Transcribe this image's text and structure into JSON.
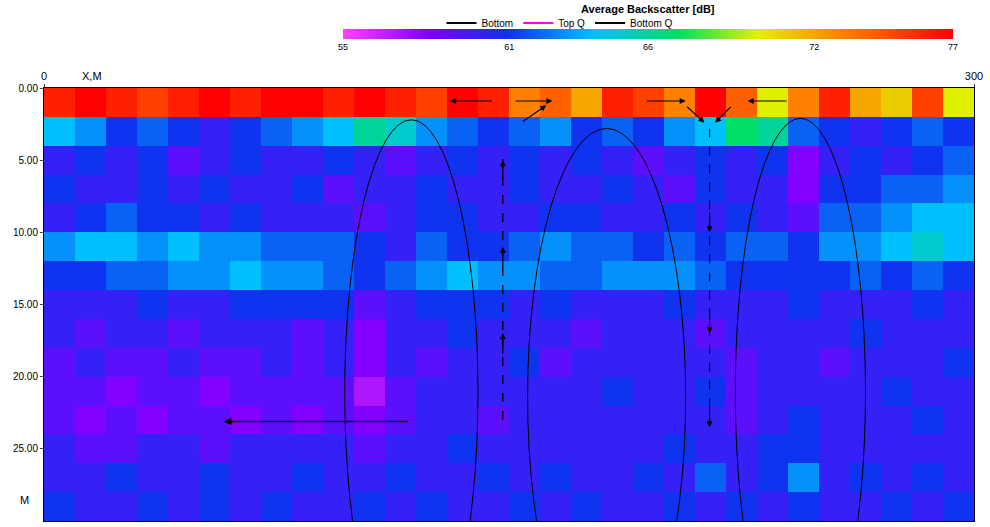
{
  "chart_data": {
    "type": "heatmap",
    "title": "Average Backscatter [dB]",
    "x_label": "X,M",
    "y_label": "M",
    "x": [
      5,
      15,
      25,
      35,
      45,
      55,
      65,
      75,
      85,
      95,
      105,
      115,
      125,
      135,
      145,
      155,
      165,
      175,
      185,
      195,
      205,
      215,
      225,
      235,
      245,
      255,
      265,
      275,
      285,
      295
    ],
    "y": [
      1,
      3,
      5,
      7,
      9,
      11,
      13,
      15,
      17,
      19,
      21,
      23,
      25,
      27,
      29
    ],
    "z": [
      [
        76,
        77,
        76,
        75,
        76,
        77,
        76,
        77,
        77,
        76,
        77,
        76,
        75,
        77,
        76,
        73,
        74,
        72,
        76,
        75,
        73,
        77,
        74,
        70,
        73,
        76,
        72,
        71,
        75,
        70
      ],
      [
        64,
        63,
        61,
        62,
        61,
        60,
        61,
        62,
        63,
        64,
        66,
        65,
        63,
        62,
        61,
        62,
        63,
        61,
        62,
        61,
        63,
        64,
        67,
        66,
        62,
        61,
        60,
        61,
        62,
        61
      ],
      [
        60,
        61,
        60,
        61,
        59,
        60,
        61,
        60,
        60,
        61,
        60,
        59,
        60,
        61,
        60,
        61,
        60,
        61,
        60,
        59,
        60,
        61,
        60,
        61,
        58,
        60,
        61,
        60,
        61,
        62
      ],
      [
        61,
        60,
        60,
        61,
        60,
        61,
        60,
        60,
        61,
        59,
        60,
        60,
        61,
        60,
        60,
        61,
        60,
        60,
        61,
        60,
        59,
        61,
        60,
        60,
        58,
        61,
        61,
        62,
        62,
        63
      ],
      [
        60,
        61,
        62,
        61,
        61,
        60,
        61,
        60,
        60,
        60,
        59,
        60,
        61,
        61,
        60,
        60,
        61,
        61,
        60,
        60,
        61,
        60,
        61,
        60,
        59,
        62,
        62,
        63,
        64,
        64
      ],
      [
        63,
        64,
        64,
        63,
        64,
        63,
        63,
        62,
        62,
        62,
        61,
        60,
        62,
        61,
        61,
        62,
        63,
        62,
        62,
        61,
        62,
        61,
        62,
        62,
        61,
        63,
        63,
        64,
        65,
        64
      ],
      [
        61,
        61,
        62,
        62,
        63,
        63,
        64,
        63,
        63,
        62,
        61,
        62,
        63,
        64,
        63,
        63,
        62,
        62,
        63,
        63,
        63,
        62,
        61,
        61,
        61,
        61,
        62,
        61,
        62,
        61
      ],
      [
        60,
        60,
        60,
        61,
        60,
        60,
        61,
        61,
        61,
        61,
        59,
        60,
        61,
        61,
        61,
        60,
        61,
        60,
        60,
        60,
        61,
        60,
        60,
        60,
        61,
        60,
        60,
        60,
        61,
        60
      ],
      [
        60,
        59,
        60,
        60,
        59,
        60,
        60,
        60,
        59,
        60,
        58,
        60,
        60,
        61,
        60,
        60,
        60,
        59,
        60,
        60,
        60,
        59,
        60,
        60,
        60,
        60,
        61,
        60,
        60,
        60
      ],
      [
        59,
        60,
        59,
        59,
        60,
        59,
        59,
        60,
        59,
        60,
        58,
        60,
        59,
        60,
        60,
        61,
        59,
        60,
        60,
        60,
        60,
        60,
        59,
        60,
        60,
        59,
        60,
        60,
        60,
        61
      ],
      [
        59,
        59,
        58,
        59,
        59,
        58,
        59,
        59,
        59,
        59,
        57,
        59,
        60,
        60,
        60,
        60,
        60,
        60,
        61,
        60,
        60,
        61,
        59,
        60,
        60,
        60,
        60,
        61,
        60,
        60
      ],
      [
        59,
        58,
        59,
        58,
        59,
        59,
        58,
        59,
        58,
        59,
        58,
        59,
        60,
        60,
        59,
        60,
        60,
        60,
        60,
        60,
        60,
        60,
        59,
        60,
        61,
        60,
        60,
        60,
        61,
        60
      ],
      [
        60,
        59,
        59,
        60,
        60,
        59,
        60,
        60,
        60,
        60,
        59,
        60,
        60,
        61,
        60,
        60,
        60,
        60,
        60,
        60,
        61,
        60,
        60,
        61,
        61,
        60,
        60,
        60,
        60,
        60
      ],
      [
        60,
        60,
        61,
        60,
        60,
        61,
        60,
        60,
        61,
        60,
        60,
        61,
        60,
        60,
        61,
        60,
        61,
        60,
        60,
        61,
        60,
        62,
        60,
        61,
        63,
        60,
        61,
        60,
        61,
        60
      ],
      [
        61,
        60,
        60,
        61,
        60,
        61,
        60,
        61,
        60,
        60,
        61,
        60,
        61,
        60,
        60,
        61,
        60,
        61,
        60,
        60,
        61,
        60,
        61,
        60,
        61,
        60,
        60,
        61,
        60,
        61
      ]
    ],
    "xlim": [
      0,
      300
    ],
    "xticks": [
      0,
      300
    ],
    "ylim": [
      0,
      30
    ],
    "yticks": [
      {
        "value": 0,
        "label": "0.00"
      },
      {
        "value": 5,
        "label": "5.00"
      },
      {
        "value": 10,
        "label": "10.00"
      },
      {
        "value": 15,
        "label": "15.00"
      },
      {
        "value": 20,
        "label": "20.00"
      },
      {
        "value": 25,
        "label": "25.00"
      }
    ],
    "colorbar": {
      "range": [
        55,
        77
      ],
      "ticks": [
        55,
        61,
        66,
        72,
        77
      ]
    },
    "series": [
      {
        "name": "Bottom",
        "color": "#000000"
      },
      {
        "name": "Top Q",
        "color": "#ff00ff"
      },
      {
        "name": "Bottom Q",
        "color": "#000000"
      }
    ],
    "legend": "top"
  }
}
